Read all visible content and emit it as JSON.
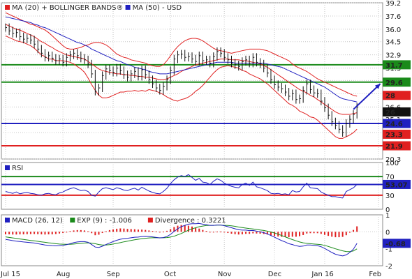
{
  "chart_data": [
    {
      "panel": "price",
      "type": "line",
      "legend_top_left": true,
      "legend": [
        {
          "text": "MA (20) + BOLLINGER BANDS®",
          "color": "#e02020"
        },
        {
          "text": "MA (50) - USD",
          "color": "#2020c0"
        }
      ],
      "y_ticks": [
        "39.2",
        "37.6",
        "36.0",
        "34.5",
        "32.9",
        "31.3",
        "29.8",
        "28.2",
        "26.6",
        "25.1",
        "23.5",
        "21.9",
        "20.3"
      ],
      "ylim": [
        20.3,
        39.2
      ],
      "levels": [
        {
          "label": "31.7",
          "value": 31.7,
          "color": "#1a8a1a"
        },
        {
          "label": "29.6",
          "value": 29.6,
          "color": "#1a8a1a"
        },
        {
          "label": "28",
          "value": 28.0,
          "color": "#e02020"
        },
        {
          "label": "26",
          "value": 26.0,
          "color": "#111111"
        },
        {
          "label": "24.6",
          "value": 24.6,
          "color": "#2020c0"
        },
        {
          "label": "23.3",
          "value": 23.3,
          "color": "#e02020"
        },
        {
          "label": "21.9",
          "value": 21.9,
          "color": "#e02020"
        }
      ],
      "horizontal_lines": [
        {
          "value": 31.7,
          "color": "#1a8a1a"
        },
        {
          "value": 29.6,
          "color": "#1a8a1a"
        },
        {
          "value": 24.6,
          "color": "#2020c0"
        },
        {
          "value": 21.9,
          "color": "#e02020"
        }
      ],
      "close_series": [
        36.2,
        35.8,
        35.5,
        35.6,
        35.1,
        34.8,
        34.9,
        34.7,
        34.2,
        33.6,
        33.1,
        32.6,
        32.8,
        32.5,
        32.2,
        32.4,
        32.0,
        32.6,
        32.9,
        33.1,
        32.8,
        32.5,
        32.3,
        31.8,
        30.6,
        28.5,
        28.9,
        30.4,
        31.2,
        31.0,
        30.8,
        31.3,
        31.0,
        30.5,
        30.2,
        30.6,
        30.9,
        30.3,
        31.1,
        30.5,
        29.9,
        29.4,
        28.9,
        28.6,
        29.1,
        29.9,
        31.0,
        32.4,
        32.9,
        33.0,
        32.6,
        32.7,
        32.4,
        32.1,
        32.8,
        32.2,
        32.3,
        31.9,
        32.7,
        33.3,
        33.1,
        32.6,
        32.3,
        31.9,
        31.7,
        31.5,
        32.1,
        32.3,
        31.9,
        32.6,
        32.0,
        31.8,
        31.3,
        30.7,
        29.9,
        29.3,
        29.0,
        28.8,
        28.4,
        27.9,
        28.2,
        27.5,
        27.6,
        28.6,
        29.4,
        28.7,
        28.3,
        28.2,
        27.3,
        26.5,
        25.6,
        24.8,
        24.4,
        23.9,
        23.5,
        24.6,
        25.1,
        25.7,
        26.6
      ],
      "ma20_series": [
        36.6,
        36.4,
        36.2,
        36.0,
        35.9,
        35.7,
        35.5,
        35.3,
        35.1,
        34.8,
        34.5,
        34.3,
        34.0,
        33.8,
        33.5,
        33.3,
        33.1,
        32.9,
        32.8,
        32.7,
        32.6,
        32.5,
        32.4,
        32.1,
        31.8,
        31.5,
        31.2,
        31.0,
        30.9,
        30.8,
        30.7,
        30.6,
        30.6,
        30.5,
        30.5,
        30.4,
        30.4,
        30.3,
        30.3,
        30.2,
        30.2,
        30.1,
        30.0,
        29.9,
        29.9,
        30.0,
        30.2,
        30.4,
        30.6,
        30.9,
        31.1,
        31.3,
        31.5,
        31.7,
        31.8,
        31.9,
        32.0,
        32.1,
        32.2,
        32.3,
        32.4,
        32.4,
        32.4,
        32.3,
        32.3,
        32.3,
        32.2,
        32.2,
        32.1,
        32.0,
        31.9,
        31.8,
        31.6,
        31.4,
        31.1,
        30.8,
        30.5,
        30.2,
        29.9,
        29.6,
        29.3,
        29.0,
        28.7,
        28.5,
        28.3,
        28.0,
        27.8,
        27.5,
        27.2,
        26.9,
        26.6,
        26.3,
        26.0,
        25.8,
        25.7,
        25.7,
        25.7,
        25.8,
        25.9
      ],
      "upper_band_series": [
        38.0,
        37.8,
        37.6,
        37.4,
        37.2,
        37.0,
        36.8,
        36.6,
        36.5,
        36.3,
        36.1,
        35.9,
        35.6,
        35.2,
        34.8,
        34.4,
        34.0,
        33.7,
        33.6,
        33.6,
        33.7,
        33.8,
        34.0,
        34.1,
        34.3,
        34.4,
        34.4,
        34.3,
        34.1,
        33.8,
        33.4,
        33.0,
        32.8,
        32.6,
        32.5,
        32.3,
        32.2,
        32.1,
        32.0,
        31.9,
        31.7,
        31.6,
        31.5,
        31.5,
        31.7,
        32.2,
        32.8,
        33.4,
        33.9,
        34.3,
        34.6,
        34.8,
        34.9,
        34.9,
        34.8,
        34.6,
        34.3,
        34.0,
        33.7,
        33.5,
        33.4,
        33.3,
        33.2,
        33.1,
        33.2,
        33.3,
        33.4,
        33.5,
        33.6,
        33.6,
        33.6,
        33.6,
        33.5,
        33.4,
        33.2,
        33.0,
        32.8,
        32.6,
        32.4,
        32.2,
        31.8,
        31.5,
        31.3,
        31.1,
        30.9,
        30.6,
        30.3,
        30.0,
        29.8,
        29.6,
        29.4,
        29.2,
        29.0,
        28.8,
        28.6,
        28.4,
        28.2,
        28.0,
        27.9
      ],
      "lower_band_series": [
        35.2,
        35.0,
        34.8,
        34.6,
        34.5,
        34.4,
        34.2,
        34.0,
        33.7,
        33.3,
        32.9,
        32.7,
        32.4,
        32.4,
        32.2,
        32.2,
        32.2,
        32.1,
        32.0,
        31.8,
        31.5,
        31.2,
        30.8,
        30.1,
        29.3,
        28.6,
        28.0,
        27.7,
        27.7,
        27.8,
        28.0,
        28.2,
        28.4,
        28.4,
        28.5,
        28.5,
        28.6,
        28.5,
        28.6,
        28.5,
        28.7,
        28.6,
        28.5,
        28.3,
        28.1,
        27.8,
        27.6,
        27.4,
        27.3,
        27.5,
        27.6,
        27.8,
        28.1,
        28.5,
        28.8,
        29.2,
        29.7,
        30.2,
        30.7,
        31.1,
        31.4,
        31.5,
        31.6,
        31.5,
        31.4,
        31.3,
        31.0,
        30.9,
        30.6,
        30.4,
        30.2,
        30.0,
        29.7,
        29.4,
        29.0,
        28.6,
        28.2,
        27.8,
        27.4,
        27.0,
        26.8,
        26.5,
        26.1,
        25.9,
        25.7,
        25.4,
        25.3,
        25.0,
        24.6,
        24.2,
        23.8,
        23.4,
        23.0,
        22.8,
        22.8,
        23.0,
        23.2,
        23.5,
        23.9
      ],
      "ma50_series": [
        37.5,
        37.4,
        37.3,
        37.2,
        37.1,
        37.0,
        36.9,
        36.8,
        36.6,
        36.5,
        36.3,
        36.2,
        36.0,
        35.8,
        35.6,
        35.4,
        35.2,
        35.0,
        34.8,
        34.6,
        34.4,
        34.3,
        34.1,
        33.9,
        33.6,
        33.4,
        33.2,
        33.0,
        32.8,
        32.6,
        32.4,
        32.2,
        32.1,
        31.9,
        31.7,
        31.6,
        31.4,
        31.3,
        31.2,
        31.1,
        30.9,
        30.8,
        30.7,
        30.6,
        30.6,
        30.6,
        30.7,
        30.8,
        30.9,
        31.0,
        31.1,
        31.2,
        31.3,
        31.4,
        31.5,
        31.6,
        31.7,
        31.8,
        31.9,
        32.0,
        32.0,
        32.0,
        32.0,
        32.0,
        31.9,
        31.9,
        31.9,
        31.9,
        31.9,
        31.9,
        31.9,
        31.9,
        31.9,
        31.8,
        31.7,
        31.6,
        31.5,
        31.4,
        31.2,
        31.0,
        30.8,
        30.6,
        30.4,
        30.2,
        30.0,
        29.8,
        29.6,
        29.4,
        29.2,
        29.0,
        28.7,
        28.4,
        28.1,
        27.8,
        27.6,
        27.5,
        27.4,
        27.3,
        27.2
      ],
      "projection_arrow": {
        "from": [
          97,
          26.3
        ],
        "to": [
          101,
          29.4
        ],
        "color": "#2020c0"
      }
    },
    {
      "panel": "rsi",
      "type": "line",
      "legend": [
        {
          "text": "RSI",
          "color": "#2020c0"
        }
      ],
      "y_ticks": [
        "100",
        "50",
        "0"
      ],
      "ylim": [
        0,
        100
      ],
      "levels": [
        {
          "label": "70",
          "value": 70,
          "color": "#1a8a1a",
          "tag": false
        },
        {
          "label": "53.07",
          "value": 53.07,
          "color": "#2020c0",
          "tag": true
        },
        {
          "label": "30",
          "value": 30,
          "color": "#e02020",
          "tag": false
        }
      ],
      "series": [
        38,
        36,
        34,
        37,
        33,
        35,
        36,
        34,
        33,
        31,
        30,
        33,
        34,
        32,
        31,
        35,
        37,
        41,
        44,
        46,
        43,
        40,
        41,
        38,
        30,
        28,
        37,
        44,
        46,
        44,
        42,
        46,
        44,
        41,
        40,
        43,
        45,
        41,
        47,
        43,
        39,
        36,
        34,
        33,
        38,
        45,
        55,
        63,
        69,
        72,
        70,
        74,
        68,
        62,
        66,
        58,
        57,
        53,
        60,
        65,
        62,
        56,
        52,
        49,
        47,
        46,
        53,
        56,
        51,
        58,
        48,
        46,
        43,
        40,
        34,
        33,
        34,
        32,
        33,
        31,
        40,
        37,
        38,
        48,
        56,
        46,
        45,
        44,
        37,
        33,
        30,
        27,
        27,
        25,
        24,
        38,
        42,
        46,
        53
      ],
      "ref_lines": [
        {
          "value": 70,
          "color": "#1a8a1a"
        },
        {
          "value": 53.07,
          "color": "#2020c0"
        },
        {
          "value": 30,
          "color": "#e02020"
        }
      ]
    },
    {
      "panel": "macd",
      "type": "line",
      "legend": [
        {
          "text": "MACD (26, 12)",
          "color": "#2020c0"
        },
        {
          "text": "EXP (9) : -1.006",
          "color": "#1a8a1a"
        },
        {
          "text": "Divergence : 0.3221",
          "color": "#e02020"
        }
      ],
      "y_ticks": [
        "1",
        "0",
        "-1",
        "-2"
      ],
      "ylim": [
        -2,
        1
      ],
      "current_value": {
        "label": "-0.68",
        "value": -0.68,
        "color": "#2020c0"
      },
      "macd_series": [
        -0.45,
        -0.48,
        -0.52,
        -0.55,
        -0.57,
        -0.6,
        -0.62,
        -0.64,
        -0.66,
        -0.7,
        -0.74,
        -0.78,
        -0.8,
        -0.82,
        -0.83,
        -0.82,
        -0.8,
        -0.76,
        -0.7,
        -0.64,
        -0.6,
        -0.58,
        -0.58,
        -0.62,
        -0.75,
        -0.9,
        -0.92,
        -0.85,
        -0.75,
        -0.66,
        -0.58,
        -0.5,
        -0.44,
        -0.4,
        -0.38,
        -0.35,
        -0.32,
        -0.31,
        -0.28,
        -0.27,
        -0.28,
        -0.3,
        -0.33,
        -0.36,
        -0.34,
        -0.28,
        -0.15,
        0.02,
        0.18,
        0.3,
        0.38,
        0.45,
        0.48,
        0.48,
        0.49,
        0.45,
        0.42,
        0.38,
        0.38,
        0.4,
        0.4,
        0.36,
        0.3,
        0.24,
        0.18,
        0.12,
        0.1,
        0.1,
        0.07,
        0.08,
        0.04,
        0.0,
        -0.05,
        -0.12,
        -0.22,
        -0.32,
        -0.42,
        -0.52,
        -0.6,
        -0.7,
        -0.75,
        -0.82,
        -0.86,
        -0.84,
        -0.78,
        -0.78,
        -0.8,
        -0.82,
        -0.88,
        -0.98,
        -1.1,
        -1.22,
        -1.32,
        -1.38,
        -1.42,
        -1.36,
        -1.22,
        -1.02,
        -0.68
      ],
      "signal_series": [
        -0.3,
        -0.33,
        -0.36,
        -0.39,
        -0.42,
        -0.45,
        -0.48,
        -0.51,
        -0.53,
        -0.56,
        -0.59,
        -0.62,
        -0.65,
        -0.67,
        -0.7,
        -0.72,
        -0.73,
        -0.74,
        -0.74,
        -0.72,
        -0.7,
        -0.68,
        -0.66,
        -0.65,
        -0.67,
        -0.7,
        -0.75,
        -0.78,
        -0.78,
        -0.76,
        -0.72,
        -0.68,
        -0.64,
        -0.59,
        -0.55,
        -0.51,
        -0.47,
        -0.44,
        -0.41,
        -0.38,
        -0.36,
        -0.35,
        -0.35,
        -0.35,
        -0.35,
        -0.34,
        -0.31,
        -0.26,
        -0.18,
        -0.1,
        0.0,
        0.09,
        0.17,
        0.24,
        0.3,
        0.34,
        0.37,
        0.38,
        0.38,
        0.39,
        0.39,
        0.38,
        0.37,
        0.35,
        0.32,
        0.28,
        0.25,
        0.22,
        0.19,
        0.17,
        0.14,
        0.11,
        0.08,
        0.04,
        -0.01,
        -0.07,
        -0.14,
        -0.22,
        -0.3,
        -0.38,
        -0.46,
        -0.53,
        -0.6,
        -0.65,
        -0.68,
        -0.7,
        -0.72,
        -0.74,
        -0.76,
        -0.8,
        -0.86,
        -0.93,
        -1.0,
        -1.06,
        -1.12,
        -1.16,
        -1.17,
        -1.13,
        -1.006
      ],
      "divergence_series": [
        -0.15,
        -0.15,
        -0.16,
        -0.16,
        -0.15,
        -0.15,
        -0.14,
        -0.13,
        -0.13,
        -0.14,
        -0.15,
        -0.16,
        -0.15,
        -0.15,
        -0.13,
        -0.1,
        -0.07,
        -0.02,
        0.04,
        0.08,
        0.1,
        0.1,
        0.08,
        0.03,
        -0.08,
        -0.2,
        -0.17,
        -0.07,
        0.03,
        0.1,
        0.14,
        0.18,
        0.2,
        0.19,
        0.17,
        0.16,
        0.15,
        0.13,
        0.13,
        0.11,
        0.08,
        0.05,
        0.02,
        -0.01,
        0.01,
        0.06,
        0.16,
        0.28,
        0.36,
        0.4,
        0.38,
        0.36,
        0.31,
        0.24,
        0.19,
        0.11,
        0.05,
        0.0,
        0.0,
        0.01,
        0.01,
        -0.02,
        -0.07,
        -0.11,
        -0.14,
        -0.16,
        -0.15,
        -0.12,
        -0.12,
        -0.09,
        -0.1,
        -0.11,
        -0.13,
        -0.16,
        -0.21,
        -0.25,
        -0.28,
        -0.3,
        -0.3,
        -0.32,
        -0.29,
        -0.29,
        -0.26,
        -0.19,
        -0.1,
        -0.08,
        -0.08,
        -0.08,
        -0.12,
        -0.18,
        -0.24,
        -0.29,
        -0.32,
        -0.32,
        -0.3,
        -0.2,
        -0.05,
        0.11,
        0.3221
      ]
    }
  ],
  "x_axis": {
    "months": [
      {
        "label": "Jul 15",
        "index": 0
      },
      {
        "label": "Aug",
        "index": 16
      },
      {
        "label": "Sep",
        "index": 30
      },
      {
        "label": "Oct",
        "index": 46
      },
      {
        "label": "Nov",
        "index": 61
      },
      {
        "label": "Dec",
        "index": 75
      },
      {
        "label": "Jan 16",
        "index": 89
      },
      {
        "label": "Feb",
        "index": 104
      }
    ],
    "count": 105
  },
  "colors": {
    "red": "#e02020",
    "blue": "#2020c0",
    "green": "#1a8a1a",
    "dark": "#111111",
    "grid": "#c8c8c8"
  }
}
